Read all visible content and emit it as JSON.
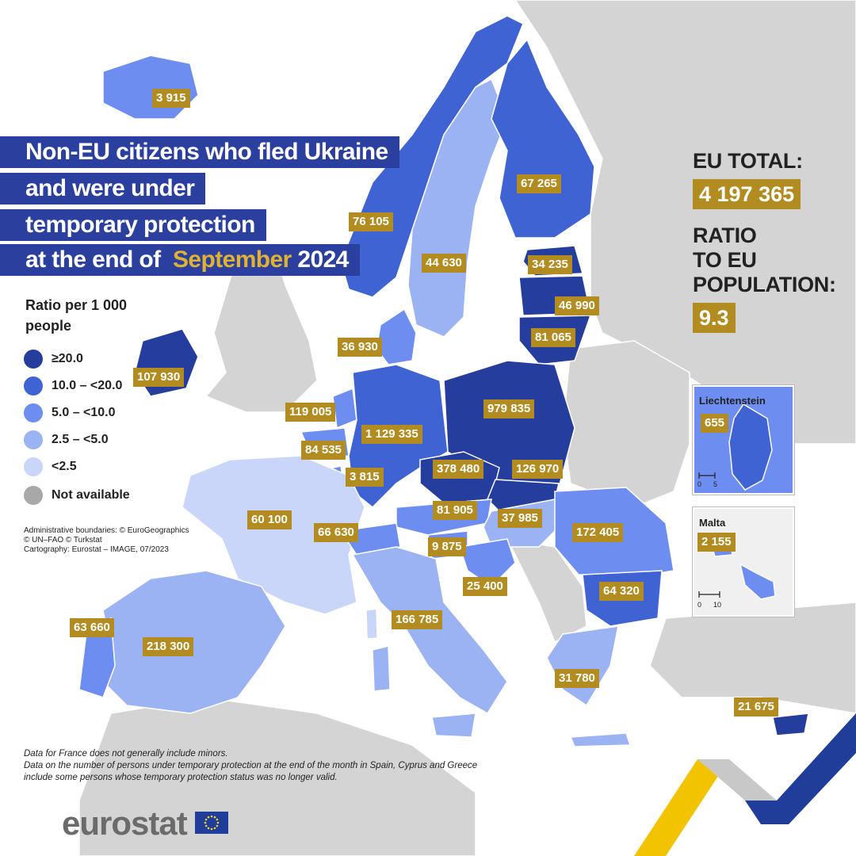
{
  "title": {
    "line1": "Non-EU citizens who fled Ukraine",
    "line2": "and were under",
    "line3": "temporary protection",
    "line4_prefix": "at the end of",
    "line4_month": "September",
    "line4_year": "2024"
  },
  "legend": {
    "title": "Ratio per 1 000 people",
    "classes": [
      {
        "label": "≥20.0",
        "color": "#253d9c"
      },
      {
        "label": "10.0 – <20.0",
        "color": "#3f63d3"
      },
      {
        "label": "5.0 – <10.0",
        "color": "#6e8df0"
      },
      {
        "label": "2.5 – <5.0",
        "color": "#9bb2f3"
      },
      {
        "label": "<2.5",
        "color": "#c9d6fa"
      },
      {
        "label": "Not available",
        "color": "#a8a8a8"
      }
    ]
  },
  "credits": {
    "line1": "Administrative boundaries: © EuroGeographics",
    "line2": "© UN–FAO © Turkstat",
    "line3": "Cartography: Eurostat – IMAGE, 07/2023"
  },
  "eu_total": {
    "label": "EU TOTAL:",
    "value": "4 197 365"
  },
  "ratio": {
    "line1": "RATIO",
    "line2": "TO EU",
    "line3": "POPULATION:",
    "value": "9.3"
  },
  "countries": [
    {
      "id": "iceland",
      "value": "3 915",
      "color": "#6e8df0"
    },
    {
      "id": "norway",
      "value": "76 105",
      "color": "#3f63d3"
    },
    {
      "id": "sweden",
      "value": "44 630",
      "color": "#9bb2f3"
    },
    {
      "id": "finland",
      "value": "67 265",
      "color": "#3f63d3"
    },
    {
      "id": "estonia",
      "value": "34 235",
      "color": "#253d9c"
    },
    {
      "id": "latvia",
      "value": "46 990",
      "color": "#253d9c"
    },
    {
      "id": "lithuania",
      "value": "81 065",
      "color": "#253d9c"
    },
    {
      "id": "denmark",
      "value": "36 930",
      "color": "#6e8df0"
    },
    {
      "id": "ireland",
      "value": "107 930",
      "color": "#253d9c"
    },
    {
      "id": "netherlands",
      "value": "119 005",
      "color": "#6e8df0"
    },
    {
      "id": "belgium",
      "value": "84 535",
      "color": "#6e8df0"
    },
    {
      "id": "luxembourg",
      "value": "3 815",
      "color": "#6e8df0"
    },
    {
      "id": "germany",
      "value": "1 129 335",
      "color": "#3f63d3"
    },
    {
      "id": "poland",
      "value": "979 835",
      "color": "#253d9c"
    },
    {
      "id": "czechia",
      "value": "378 480",
      "color": "#253d9c"
    },
    {
      "id": "slovakia",
      "value": "126 970",
      "color": "#253d9c"
    },
    {
      "id": "austria",
      "value": "81 905",
      "color": "#6e8df0"
    },
    {
      "id": "hungary",
      "value": "37 985",
      "color": "#9bb2f3"
    },
    {
      "id": "romania",
      "value": "172 405",
      "color": "#6e8df0"
    },
    {
      "id": "france",
      "value": "60 100",
      "color": "#c9d6fa"
    },
    {
      "id": "switzerland",
      "value": "66 630",
      "color": "#6e8df0"
    },
    {
      "id": "slovenia",
      "value": "9 875",
      "color": "#6e8df0"
    },
    {
      "id": "croatia",
      "value": "25 400",
      "color": "#6e8df0"
    },
    {
      "id": "bulgaria",
      "value": "64 320",
      "color": "#3f63d3"
    },
    {
      "id": "portugal",
      "value": "63 660",
      "color": "#6e8df0"
    },
    {
      "id": "spain",
      "value": "218 300",
      "color": "#9bb2f3"
    },
    {
      "id": "italy",
      "value": "166 785",
      "color": "#9bb2f3"
    },
    {
      "id": "greece",
      "value": "31 780",
      "color": "#9bb2f3"
    },
    {
      "id": "cyprus",
      "value": "21 675",
      "color": "#253d9c"
    }
  ],
  "insets": [
    {
      "id": "liechtenstein",
      "name": "Liechtenstein",
      "value": "655",
      "scale": [
        "0",
        "5"
      ],
      "color": "#3f63d3"
    },
    {
      "id": "malta",
      "name": "Malta",
      "value": "2 155",
      "scale": [
        "0",
        "10"
      ],
      "color": "#6e8df0"
    }
  ],
  "notes": {
    "line1": "Data for France does not generally include minors.",
    "line2": "Data on the number of persons under temporary protection at the end of the month in Spain, Cyprus and Greece",
    "line3": "include some persons whose temporary protection status was no longer valid."
  },
  "brand": {
    "logo": "eurostat"
  }
}
